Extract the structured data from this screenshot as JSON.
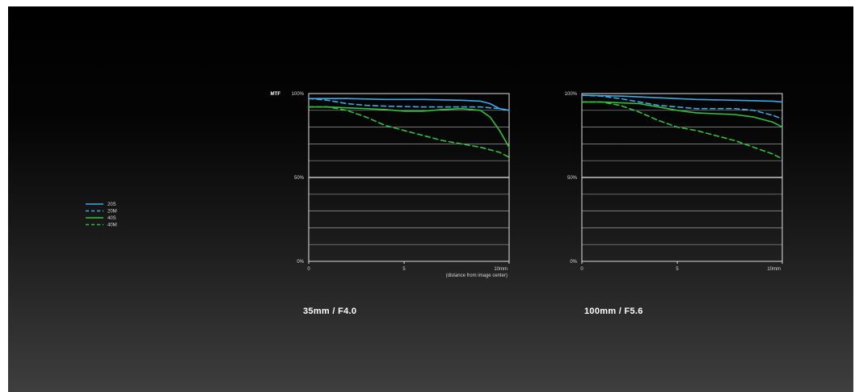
{
  "chart_data": [
    {
      "type": "line",
      "title": "35mm / F4.0",
      "ylabel": "MTF",
      "xlabel": "(distance from image center)",
      "xlim": [
        0,
        10.5
      ],
      "ylim": [
        0,
        100
      ],
      "x_ticks": [
        {
          "value": 0,
          "label": "0"
        },
        {
          "value": 5,
          "label": "5"
        },
        {
          "value": 10.5,
          "label": "10mm"
        }
      ],
      "y_ticks": [
        {
          "value": 100,
          "label": "100%"
        },
        {
          "value": 50,
          "label": "50%"
        },
        {
          "value": 0,
          "label": "0%"
        }
      ],
      "grid": true,
      "series": [
        {
          "name": "20S",
          "color": "#3fa9e6",
          "dash": false,
          "x": [
            0,
            2,
            4,
            6,
            8,
            9,
            9.5,
            10,
            10.5
          ],
          "y": [
            97,
            97,
            96.5,
            96.5,
            96,
            95.5,
            94,
            91,
            90
          ]
        },
        {
          "name": "20M",
          "color": "#3fa9e6",
          "dash": true,
          "x": [
            0,
            1,
            2,
            3,
            4,
            6,
            8,
            9,
            9.5,
            10,
            10.5
          ],
          "y": [
            97,
            96,
            94,
            93,
            92.5,
            92,
            92,
            92,
            91.5,
            91,
            90
          ]
        },
        {
          "name": "40S",
          "color": "#33c03c",
          "dash": false,
          "x": [
            0,
            1,
            2,
            3,
            4,
            5,
            6,
            7,
            8,
            9,
            9.5,
            10,
            10.5
          ],
          "y": [
            92,
            92,
            91.5,
            91,
            90.5,
            89.5,
            89.5,
            90.5,
            91,
            90,
            86,
            78,
            68
          ]
        },
        {
          "name": "40M",
          "color": "#33c03c",
          "dash": true,
          "x": [
            0,
            1,
            2,
            3,
            4,
            5,
            6,
            7,
            8,
            9,
            10,
            10.5
          ],
          "y": [
            92,
            92,
            90,
            86,
            81,
            78,
            75,
            72,
            70,
            68,
            65,
            62
          ]
        }
      ]
    },
    {
      "type": "line",
      "title": "100mm / F5.6",
      "xlim": [
        0,
        10.5
      ],
      "ylim": [
        0,
        100
      ],
      "x_ticks": [
        {
          "value": 0,
          "label": "0"
        },
        {
          "value": 5,
          "label": "5"
        },
        {
          "value": 10.5,
          "label": "10mm"
        }
      ],
      "y_ticks": [
        {
          "value": 100,
          "label": "100%"
        },
        {
          "value": 50,
          "label": "50%"
        },
        {
          "value": 0,
          "label": "0%"
        }
      ],
      "grid": true,
      "series": [
        {
          "name": "20S",
          "color": "#3fa9e6",
          "dash": false,
          "x": [
            0,
            2,
            4,
            6,
            8,
            10,
            10.5
          ],
          "y": [
            99,
            98.5,
            97.5,
            96.5,
            96,
            95.5,
            95
          ]
        },
        {
          "name": "20M",
          "color": "#3fa9e6",
          "dash": true,
          "x": [
            0,
            1,
            2,
            3,
            4,
            5,
            6,
            7,
            8,
            9,
            10,
            10.5
          ],
          "y": [
            99,
            98.5,
            97,
            95,
            93,
            92,
            91,
            91,
            91,
            90,
            87,
            85
          ]
        },
        {
          "name": "40S",
          "color": "#33c03c",
          "dash": false,
          "x": [
            0,
            1,
            2,
            3,
            4,
            5,
            6,
            7,
            8,
            9,
            10,
            10.5
          ],
          "y": [
            95,
            95,
            94.5,
            94,
            92,
            90,
            88.5,
            88,
            87.5,
            86,
            83,
            80
          ]
        },
        {
          "name": "40M",
          "color": "#33c03c",
          "dash": true,
          "x": [
            0,
            1,
            2,
            3,
            4,
            5,
            6,
            7,
            8,
            9,
            10,
            10.5
          ],
          "y": [
            95,
            95,
            93,
            89,
            84,
            80,
            78,
            75,
            72,
            68,
            64,
            61
          ]
        }
      ]
    }
  ],
  "legend": {
    "items": [
      {
        "label": "20S",
        "color": "#3fa9e6",
        "dash": false
      },
      {
        "label": "20M",
        "color": "#3fa9e6",
        "dash": true
      },
      {
        "label": "40S",
        "color": "#33c03c",
        "dash": false
      },
      {
        "label": "40M",
        "color": "#33c03c",
        "dash": true
      }
    ]
  }
}
